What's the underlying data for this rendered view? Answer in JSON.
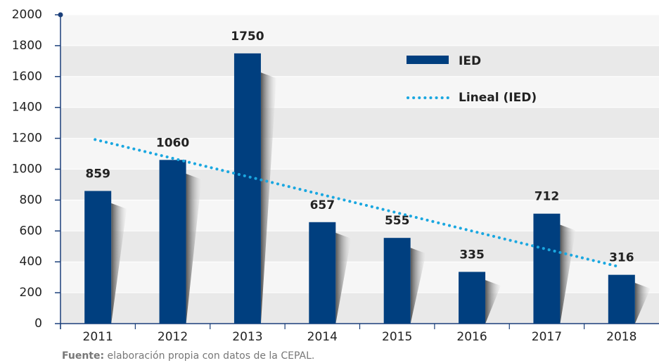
{
  "chart_data": {
    "type": "bar",
    "categories": [
      "2011",
      "2012",
      "2013",
      "2014",
      "2015",
      "2016",
      "2017",
      "2018"
    ],
    "series": [
      {
        "name": "IED",
        "color": "#003f7f",
        "values": [
          859,
          1060,
          1750,
          657,
          555,
          335,
          712,
          316
        ]
      },
      {
        "name": "Lineal (IED)",
        "color": "#1aa7e0",
        "type": "line",
        "values": [
          1192,
          1075,
          957,
          839,
          722,
          604,
          486,
          369
        ]
      }
    ],
    "ylim": [
      0,
      2000
    ],
    "yticks": [
      0,
      200,
      400,
      600,
      800,
      1000,
      1200,
      1400,
      1600,
      1800,
      2000
    ],
    "grid": true,
    "legend": "top-right",
    "source_label": "Fuente:",
    "source": "elaboración propia con datos de la CEPAL."
  }
}
